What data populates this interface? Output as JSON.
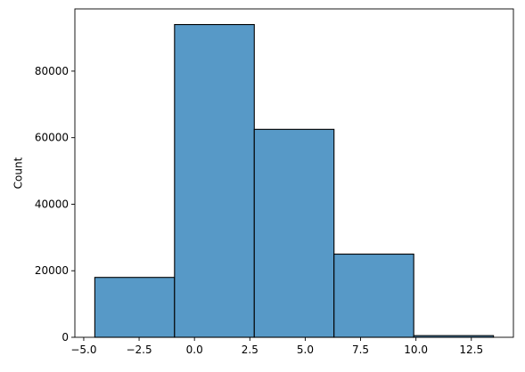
{
  "chart_data": {
    "type": "bar",
    "title": "",
    "xlabel": "",
    "ylabel": "Count",
    "bins": [
      {
        "x0": -4.5,
        "x1": -0.9,
        "count": 18000
      },
      {
        "x0": -0.9,
        "x1": 2.7,
        "count": 94000
      },
      {
        "x0": 2.7,
        "x1": 6.3,
        "count": 62500
      },
      {
        "x0": 6.3,
        "x1": 9.9,
        "count": 25000
      },
      {
        "x0": 9.9,
        "x1": 13.5,
        "count": 500
      }
    ],
    "xlim": [
      -5.4,
      14.4
    ],
    "ylim": [
      0,
      98700
    ],
    "xticks": [
      -5.0,
      -2.5,
      0.0,
      2.5,
      5.0,
      7.5,
      10.0,
      12.5
    ],
    "xtick_labels": [
      "−5.0",
      "−2.5",
      "0.0",
      "2.5",
      "5.0",
      "7.5",
      "10.0",
      "12.5"
    ],
    "yticks": [
      0,
      20000,
      40000,
      60000,
      80000
    ],
    "ytick_labels": [
      "0",
      "20000",
      "40000",
      "60000",
      "80000"
    ],
    "bar_color": "#5799c7",
    "edge_color": "#000000",
    "grid": false,
    "legend": "none"
  }
}
